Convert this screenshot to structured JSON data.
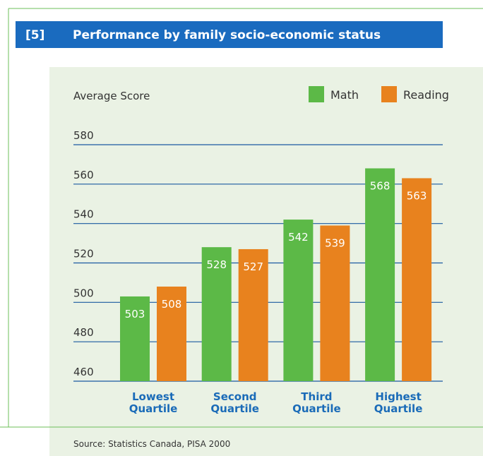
{
  "header": {
    "number": "[5]",
    "title": "Performance by family socio-economic status"
  },
  "chart_data": {
    "type": "bar",
    "y_label": "Average Score",
    "categories": [
      "Lowest Quartile",
      "Second Quartile",
      "Third Quartile",
      "Highest Quartile"
    ],
    "series": [
      {
        "name": "Math",
        "color": "#5cb947",
        "values": [
          503,
          528,
          542,
          568
        ]
      },
      {
        "name": "Reading",
        "color": "#e8821e",
        "values": [
          508,
          527,
          539,
          563
        ]
      }
    ],
    "ylim": [
      460,
      580
    ],
    "yticks": [
      460,
      480,
      500,
      520,
      540,
      560,
      580
    ],
    "grid": true,
    "legend": "top-right"
  },
  "source": "Source: Statistics Canada, PISA 2000"
}
